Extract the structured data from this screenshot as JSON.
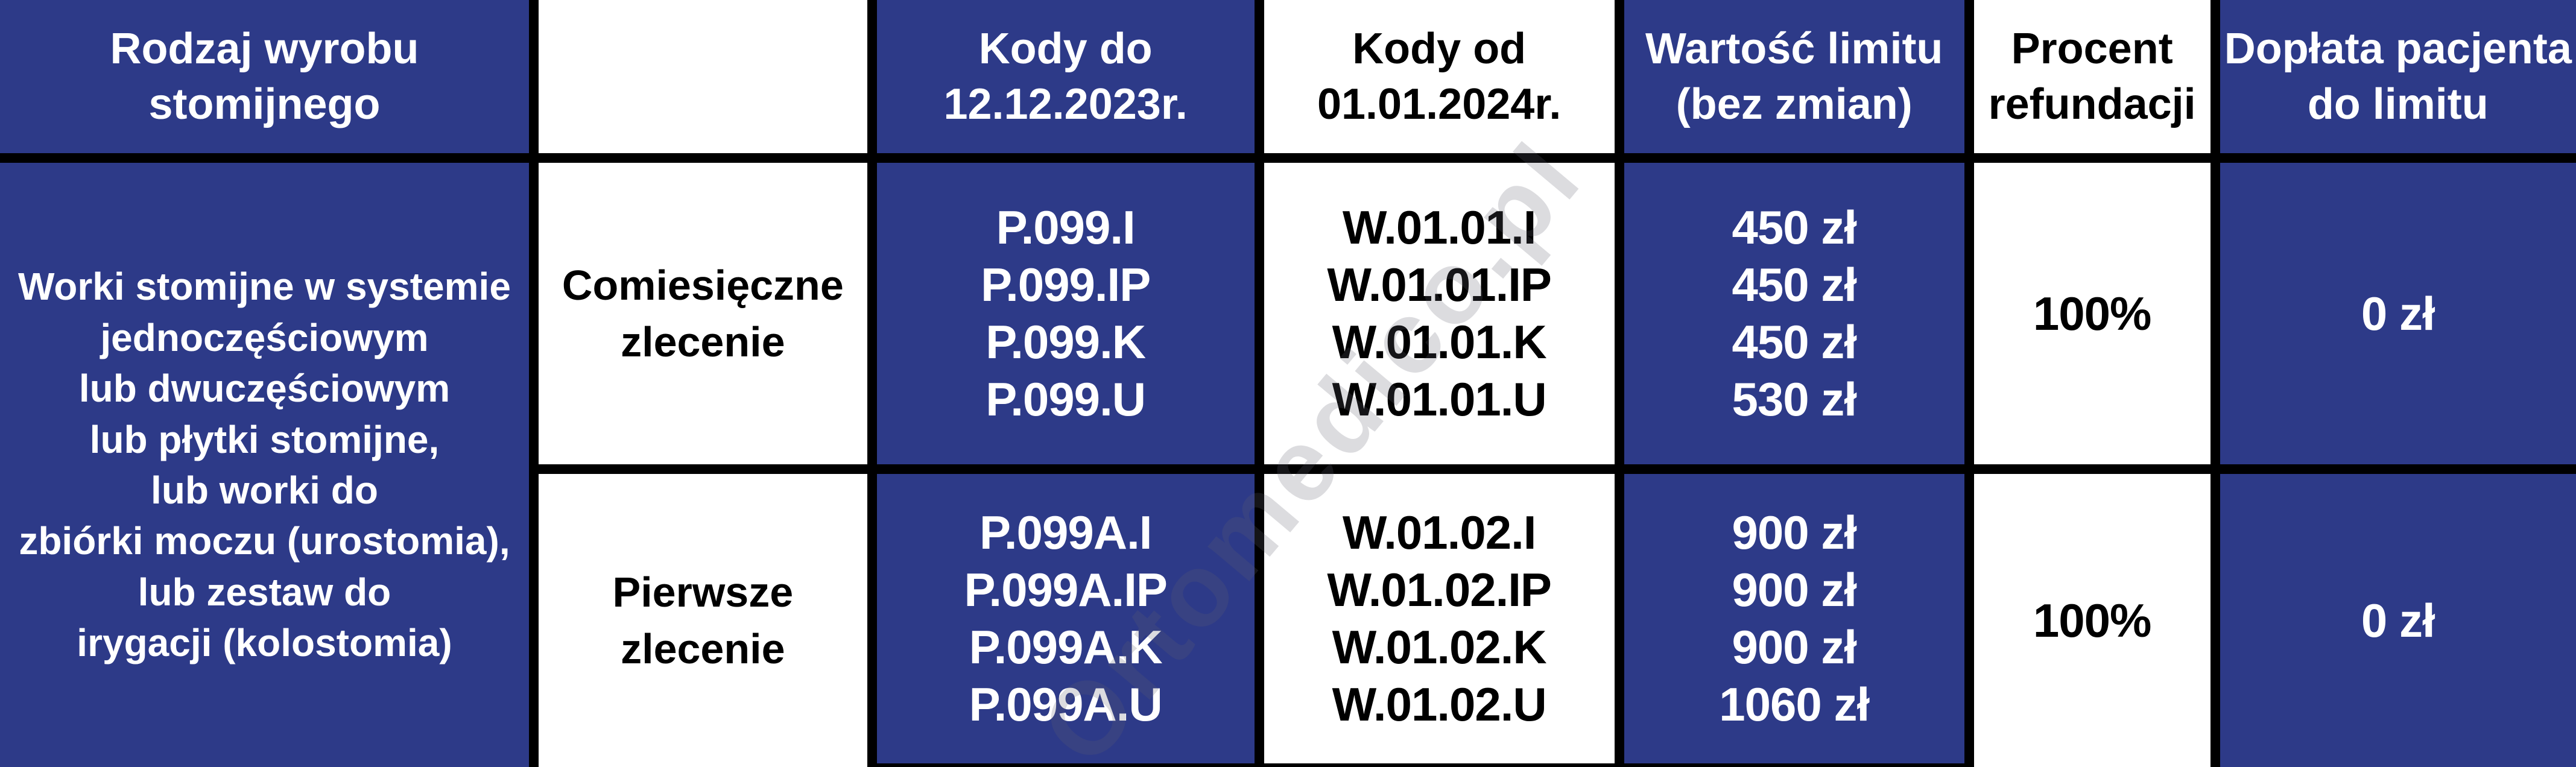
{
  "header": {
    "product_type": [
      "Rodzaj wyrobu",
      "stomijnego"
    ],
    "empty": "",
    "codes_until": [
      "Kody do",
      "12.12.2023r."
    ],
    "codes_from": [
      "Kody od",
      "01.01.2024r."
    ],
    "limit_value": [
      "Wartość limitu",
      "(bez zmian)"
    ],
    "refund_percent": [
      "Procent",
      "refundacji"
    ],
    "patient_copay": [
      "Dopłata pacjenta",
      "do limitu"
    ]
  },
  "product": {
    "lines": [
      "Worki stomijne w systemie",
      "jednoczęściowym",
      "lub dwuczęściowym",
      "lub płytki stomijne,",
      "lub worki do",
      "zbiórki moczu (urostomia),",
      "lub zestaw do",
      "irygacji (kolostomia)"
    ]
  },
  "rows": [
    {
      "order_type": [
        "Comiesięczne",
        "zlecenie"
      ],
      "codes_old": [
        "P.099.I",
        "P.099.IP",
        "P.099.K",
        "P.099.U"
      ],
      "codes_new": [
        "W.01.01.I",
        "W.01.01.IP",
        "W.01.01.K",
        "W.01.01.U"
      ],
      "limits": [
        "450 zł",
        "450 zł",
        "450 zł",
        "530 zł"
      ],
      "refund_percent": "100%",
      "patient_copay": "0 zł"
    },
    {
      "order_type": [
        "Pierwsze",
        "zlecenie"
      ],
      "codes_old": [
        "P.099A.I",
        "P.099A.IP",
        "P.099A.K",
        "P.099A.U"
      ],
      "codes_new": [
        "W.01.02.I",
        "W.01.02.IP",
        "W.01.02.K",
        "W.01.02.U"
      ],
      "limits": [
        "900 zł",
        "900 zł",
        "900 zł",
        "1060 zł"
      ],
      "refund_percent": "100%",
      "patient_copay": "0 zł"
    }
  ],
  "watermark": "Ortomedico.pl",
  "colors": {
    "navy": "#2d3a88",
    "border_black": "#000000",
    "white": "#ffffff",
    "watermark_gray": "rgba(95,95,110,0.22)"
  }
}
